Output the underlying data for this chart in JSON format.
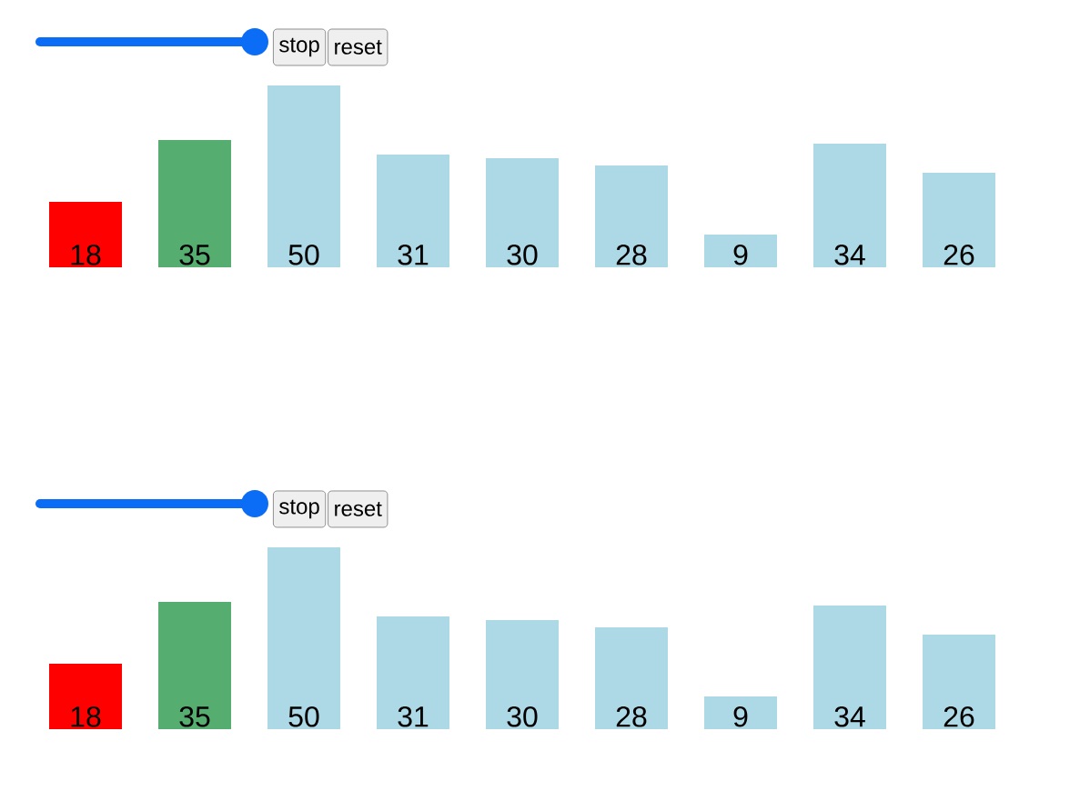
{
  "chart_data": [
    {
      "type": "bar",
      "categories": [
        null,
        null,
        null,
        null,
        null,
        null,
        null,
        null,
        null
      ],
      "values": [
        18,
        35,
        50,
        31,
        30,
        28,
        9,
        34,
        26
      ],
      "colors": [
        "#ff0000",
        "#55ae6f",
        "#add8e6",
        "#add8e6",
        "#add8e6",
        "#add8e6",
        "#add8e6",
        "#add8e6",
        "#add8e6"
      ],
      "data_labels": true,
      "annotations": [
        "stop",
        "reset"
      ]
    },
    {
      "type": "bar",
      "categories": [
        null,
        null,
        null,
        null,
        null,
        null,
        null,
        null,
        null
      ],
      "values": [
        18,
        35,
        50,
        31,
        30,
        28,
        9,
        34,
        26
      ],
      "colors": [
        "#ff0000",
        "#55ae6f",
        "#add8e6",
        "#add8e6",
        "#add8e6",
        "#add8e6",
        "#add8e6",
        "#add8e6",
        "#add8e6"
      ],
      "data_labels": true,
      "annotations": [
        "stop",
        "reset"
      ]
    }
  ]
}
